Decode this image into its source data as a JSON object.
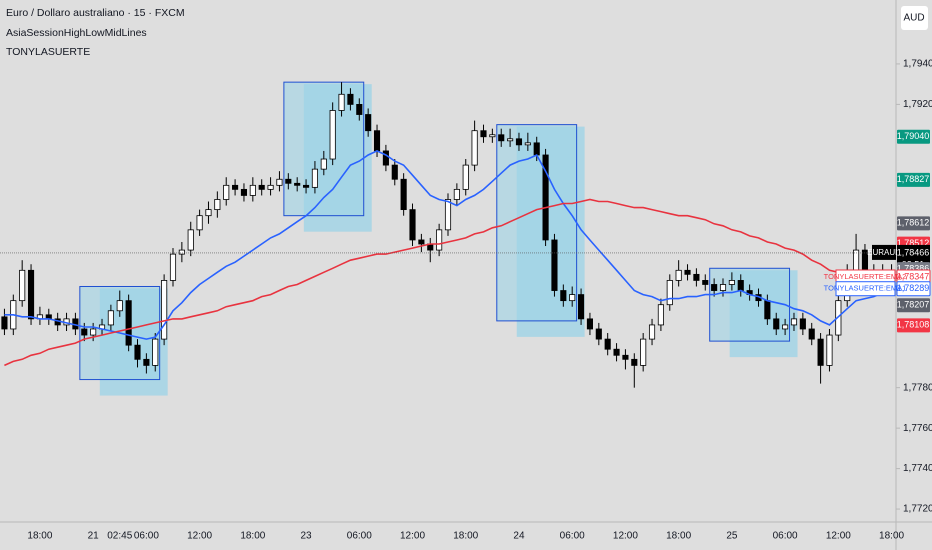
{
  "chart_data": {
    "type": "candlestick",
    "title": "Euro / Dollaro australiano · 15 · FXCM",
    "indicators": [
      "AsiaSessionHighLowMidLines",
      "TONYLASUERTE"
    ],
    "currency": "AUD",
    "up_color": "#ffffff",
    "down_color": "#000000",
    "wick_color": "#000000",
    "grid": false,
    "ylim": [
      1.77136,
      1.79716
    ],
    "yticks": [
      {
        "value": 1.794,
        "label": "1,79400"
      },
      {
        "value": 1.792,
        "label": "1,79200"
      },
      {
        "value": 1.778,
        "label": "1,77800"
      },
      {
        "value": 1.776,
        "label": "1,77600"
      },
      {
        "value": 1.774,
        "label": "1,77400"
      },
      {
        "value": 1.772,
        "label": "1,77200"
      }
    ],
    "categories": [
      null,
      null,
      null,
      null,
      "18:00",
      null,
      null,
      null,
      null,
      null,
      "21",
      null,
      null,
      "02:45",
      null,
      null,
      "06:00",
      null,
      null,
      null,
      null,
      null,
      "12:00",
      null,
      null,
      null,
      null,
      null,
      "18:00",
      null,
      null,
      null,
      null,
      null,
      "23",
      null,
      null,
      null,
      null,
      null,
      "06:00",
      null,
      null,
      null,
      null,
      null,
      "12:00",
      null,
      null,
      null,
      null,
      null,
      "18:00",
      null,
      null,
      null,
      null,
      null,
      "24",
      null,
      null,
      null,
      null,
      null,
      "06:00",
      null,
      null,
      null,
      null,
      null,
      "12:00",
      null,
      null,
      null,
      null,
      null,
      "18:00",
      null,
      null,
      null,
      null,
      null,
      "25",
      null,
      null,
      null,
      null,
      null,
      "06:00",
      null,
      null,
      null,
      null,
      null,
      "12:00",
      null,
      null,
      null,
      null,
      null,
      "18:00"
    ],
    "ohlc": [
      [
        1.7815,
        1.7819,
        1.7806,
        1.7809
      ],
      [
        1.7809,
        1.7826,
        1.7806,
        1.7823
      ],
      [
        1.7823,
        1.7843,
        1.782,
        1.7838
      ],
      [
        1.7838,
        1.7841,
        1.7811,
        1.7814
      ],
      [
        1.7814,
        1.782,
        1.7811,
        1.7816
      ],
      [
        1.7816,
        1.7819,
        1.7811,
        1.7814
      ],
      [
        1.7814,
        1.7817,
        1.7808,
        1.7811
      ],
      [
        1.7811,
        1.7817,
        1.7808,
        1.7814
      ],
      [
        1.7814,
        1.7817,
        1.7806,
        1.7809
      ],
      [
        1.7809,
        1.7812,
        1.7803,
        1.7806
      ],
      [
        1.7806,
        1.7812,
        1.7803,
        1.7809
      ],
      [
        1.7809,
        1.7814,
        1.7806,
        1.7811
      ],
      [
        1.7811,
        1.7821,
        1.7808,
        1.7818
      ],
      [
        1.7818,
        1.7828,
        1.7815,
        1.7823
      ],
      [
        1.7823,
        1.7826,
        1.7798,
        1.7801
      ],
      [
        1.7801,
        1.7804,
        1.779,
        1.7794
      ],
      [
        1.7794,
        1.7797,
        1.7787,
        1.7791
      ],
      [
        1.7791,
        1.7807,
        1.7788,
        1.7804
      ],
      [
        1.7804,
        1.7836,
        1.7801,
        1.7833
      ],
      [
        1.7833,
        1.7849,
        1.783,
        1.7846
      ],
      [
        1.7846,
        1.7852,
        1.7842,
        1.7848
      ],
      [
        1.7848,
        1.7862,
        1.7845,
        1.7858
      ],
      [
        1.7858,
        1.7868,
        1.7855,
        1.7865
      ],
      [
        1.7865,
        1.7872,
        1.7861,
        1.7868
      ],
      [
        1.7868,
        1.7877,
        1.7864,
        1.7873
      ],
      [
        1.7873,
        1.7884,
        1.787,
        1.788
      ],
      [
        1.788,
        1.7883,
        1.7875,
        1.7878
      ],
      [
        1.7878,
        1.7881,
        1.7872,
        1.7875
      ],
      [
        1.7875,
        1.7884,
        1.7872,
        1.788
      ],
      [
        1.788,
        1.7883,
        1.7875,
        1.7878
      ],
      [
        1.7878,
        1.7884,
        1.7875,
        1.788
      ],
      [
        1.788,
        1.7887,
        1.7877,
        1.7883
      ],
      [
        1.7883,
        1.7886,
        1.7878,
        1.7881
      ],
      [
        1.7881,
        1.7884,
        1.7877,
        1.788
      ],
      [
        1.788,
        1.7883,
        1.7876,
        1.7879
      ],
      [
        1.7879,
        1.7892,
        1.7876,
        1.7888
      ],
      [
        1.7888,
        1.7897,
        1.7885,
        1.7893
      ],
      [
        1.7893,
        1.7921,
        1.789,
        1.7917
      ],
      [
        1.7917,
        1.7931,
        1.7914,
        1.7925
      ],
      [
        1.7925,
        1.7928,
        1.7917,
        1.792
      ],
      [
        1.792,
        1.7923,
        1.7912,
        1.7915
      ],
      [
        1.7915,
        1.7918,
        1.7904,
        1.7907
      ],
      [
        1.7907,
        1.791,
        1.7894,
        1.7897
      ],
      [
        1.7897,
        1.79,
        1.7887,
        1.789
      ],
      [
        1.789,
        1.7893,
        1.788,
        1.7883
      ],
      [
        1.7883,
        1.7886,
        1.7865,
        1.7868
      ],
      [
        1.7868,
        1.7871,
        1.785,
        1.7853
      ],
      [
        1.7853,
        1.7856,
        1.7847,
        1.7851
      ],
      [
        1.7851,
        1.7854,
        1.7842,
        1.7848
      ],
      [
        1.7848,
        1.7861,
        1.7845,
        1.7858
      ],
      [
        1.7858,
        1.7876,
        1.7855,
        1.7873
      ],
      [
        1.7873,
        1.7881,
        1.787,
        1.7878
      ],
      [
        1.7878,
        1.7893,
        1.7875,
        1.789
      ],
      [
        1.789,
        1.7912,
        1.7887,
        1.7907
      ],
      [
        1.7907,
        1.791,
        1.7901,
        1.7904
      ],
      [
        1.7904,
        1.7908,
        1.7901,
        1.7905
      ],
      [
        1.7905,
        1.7908,
        1.7899,
        1.7902
      ],
      [
        1.7902,
        1.7908,
        1.7899,
        1.7903
      ],
      [
        1.7903,
        1.7906,
        1.7897,
        1.79
      ],
      [
        1.79,
        1.7906,
        1.7897,
        1.7901
      ],
      [
        1.7901,
        1.7904,
        1.7892,
        1.7895
      ],
      [
        1.7895,
        1.7898,
        1.785,
        1.7853
      ],
      [
        1.7853,
        1.7856,
        1.7825,
        1.7828
      ],
      [
        1.7828,
        1.7831,
        1.782,
        1.7823
      ],
      [
        1.7823,
        1.783,
        1.782,
        1.7826
      ],
      [
        1.7826,
        1.7829,
        1.7811,
        1.7814
      ],
      [
        1.7814,
        1.7817,
        1.7806,
        1.7809
      ],
      [
        1.7809,
        1.7812,
        1.7801,
        1.7804
      ],
      [
        1.7804,
        1.7807,
        1.7796,
        1.7799
      ],
      [
        1.7799,
        1.7802,
        1.7793,
        1.7796
      ],
      [
        1.7796,
        1.7799,
        1.7789,
        1.7794
      ],
      [
        1.7794,
        1.7797,
        1.778,
        1.7791
      ],
      [
        1.7791,
        1.7807,
        1.7788,
        1.7804
      ],
      [
        1.7804,
        1.7814,
        1.7801,
        1.7811
      ],
      [
        1.7811,
        1.7824,
        1.7808,
        1.7821
      ],
      [
        1.7821,
        1.7836,
        1.7818,
        1.7833
      ],
      [
        1.7833,
        1.7843,
        1.783,
        1.7838
      ],
      [
        1.7838,
        1.7841,
        1.7833,
        1.7836
      ],
      [
        1.7836,
        1.7839,
        1.783,
        1.7833
      ],
      [
        1.7833,
        1.7836,
        1.7828,
        1.7831
      ],
      [
        1.7831,
        1.7834,
        1.7825,
        1.7828
      ],
      [
        1.7828,
        1.7834,
        1.7825,
        1.7831
      ],
      [
        1.7831,
        1.7837,
        1.7828,
        1.7833
      ],
      [
        1.7833,
        1.7836,
        1.7825,
        1.7828
      ],
      [
        1.7828,
        1.7831,
        1.7823,
        1.7826
      ],
      [
        1.7826,
        1.7829,
        1.782,
        1.7823
      ],
      [
        1.7823,
        1.7826,
        1.7811,
        1.7814
      ],
      [
        1.7814,
        1.7817,
        1.7806,
        1.7809
      ],
      [
        1.7809,
        1.7814,
        1.7806,
        1.7811
      ],
      [
        1.7811,
        1.7817,
        1.7808,
        1.7814
      ],
      [
        1.7814,
        1.7817,
        1.7806,
        1.7809
      ],
      [
        1.7809,
        1.7812,
        1.7801,
        1.7804
      ],
      [
        1.7804,
        1.7807,
        1.7782,
        1.7791
      ],
      [
        1.7791,
        1.7809,
        1.7788,
        1.7806
      ],
      [
        1.7806,
        1.7826,
        1.7803,
        1.7823
      ],
      [
        1.7823,
        1.7841,
        1.782,
        1.7838
      ],
      [
        1.7838,
        1.7856,
        1.7835,
        1.7848
      ],
      [
        1.7848,
        1.7851,
        1.7835,
        1.7838
      ],
      [
        1.7838,
        1.7841,
        1.7833,
        1.7836
      ],
      [
        1.7836,
        1.7841,
        1.7833,
        1.7838
      ],
      [
        1.7838,
        1.7841,
        1.7833,
        1.7836
      ]
    ],
    "series": [
      {
        "name": "TONYLASUERTE:EMA1",
        "color": "#2962ff",
        "values": [
          1.7816,
          1.7816,
          1.7815,
          1.7815,
          1.7814,
          1.7814,
          1.7813,
          1.7812,
          1.7811,
          1.781,
          1.781,
          1.7809,
          1.7808,
          1.7807,
          1.7806,
          1.7805,
          1.7804,
          1.7805,
          1.7811,
          1.7818,
          1.7822,
          1.7827,
          1.7831,
          1.7834,
          1.7837,
          1.784,
          1.7842,
          1.7845,
          1.7848,
          1.7851,
          1.7854,
          1.7856,
          1.7859,
          1.7862,
          1.7865,
          1.7869,
          1.7874,
          1.7878,
          1.7884,
          1.789,
          1.7892,
          1.7895,
          1.7897,
          1.7895,
          1.7892,
          1.789,
          1.7885,
          1.788,
          1.7875,
          1.7873,
          1.7872,
          1.787,
          1.7873,
          1.7875,
          1.7878,
          1.7882,
          1.7886,
          1.789,
          1.7892,
          1.7893,
          1.7895,
          1.7887,
          1.7878,
          1.7871,
          1.7865,
          1.7858,
          1.7853,
          1.7848,
          1.7843,
          1.7838,
          1.7833,
          1.7828,
          1.7826,
          1.7825,
          1.7823,
          1.7824,
          1.7824,
          1.7825,
          1.7825,
          1.7826,
          1.7826,
          1.7827,
          1.7827,
          1.7828,
          1.7826,
          1.7825,
          1.7823,
          1.7822,
          1.7821,
          1.7819,
          1.7818,
          1.7816,
          1.7813,
          1.7811,
          1.7815,
          1.7819,
          1.7823,
          1.7824,
          1.7825,
          1.7827,
          1.7828
        ]
      },
      {
        "name": "TONYLASUERTE:EMA2",
        "color": "#e8333f",
        "values": [
          1.7791,
          1.7793,
          1.7794,
          1.7796,
          1.7797,
          1.7799,
          1.78,
          1.7801,
          1.7802,
          1.7804,
          1.7805,
          1.7806,
          1.7807,
          1.7808,
          1.7809,
          1.781,
          1.7811,
          1.7812,
          1.7813,
          1.7814,
          1.7814,
          1.7815,
          1.7816,
          1.7817,
          1.7818,
          1.782,
          1.7821,
          1.7822,
          1.7823,
          1.7825,
          1.7826,
          1.7828,
          1.783,
          1.7831,
          1.7833,
          1.7835,
          1.7837,
          1.7839,
          1.7841,
          1.7843,
          1.7844,
          1.7845,
          1.7846,
          1.7846,
          1.7847,
          1.7848,
          1.7849,
          1.785,
          1.7851,
          1.7851,
          1.7852,
          1.7853,
          1.7854,
          1.7856,
          1.7857,
          1.7859,
          1.786,
          1.7862,
          1.7864,
          1.7866,
          1.7868,
          1.7869,
          1.787,
          1.7871,
          1.7871,
          1.7872,
          1.7873,
          1.7872,
          1.7872,
          1.7871,
          1.787,
          1.7869,
          1.7869,
          1.7868,
          1.7867,
          1.7866,
          1.7865,
          1.7865,
          1.7864,
          1.7863,
          1.7861,
          1.786,
          1.7858,
          1.7857,
          1.7855,
          1.7854,
          1.7852,
          1.7851,
          1.7849,
          1.7848,
          1.7846,
          1.7843,
          1.7841,
          1.7838,
          1.7837,
          1.7837,
          1.7836,
          1.7836,
          1.7836,
          1.7836,
          1.7836
        ]
      }
    ],
    "box_color": "#9fd3e6",
    "box_border": "#1f4fd1",
    "boxes": [
      {
        "from": 9,
        "to": 17,
        "high": 1.783,
        "low": 1.7784
      },
      {
        "from": 32,
        "to": 40,
        "high": 1.7931,
        "low": 1.7865
      },
      {
        "from": 56,
        "to": 64,
        "high": 1.791,
        "low": 1.7813
      },
      {
        "from": 80,
        "to": 88,
        "high": 1.7839,
        "low": 1.7803
      }
    ],
    "price_labels": [
      {
        "value": 1.7904,
        "label": "1,79040",
        "color": "#089981"
      },
      {
        "value": 1.78827,
        "label": "1,78827",
        "color": "#089981"
      },
      {
        "value": 1.78612,
        "label": "1,78612",
        "color": "#5d606b"
      },
      {
        "value": 1.78512,
        "label": "1,78512",
        "color": "#f23645"
      },
      {
        "value": 1.78466,
        "label": "1,78466",
        "color": "#000000",
        "name": "EURAUD",
        "countdown": "02:51"
      },
      {
        "value": 1.78386,
        "label": "1,78386",
        "color": "#787b86"
      },
      {
        "value": 1.78347,
        "label": "1,78347",
        "color": "#f23645",
        "outline": true,
        "name": "TONYLASUERTE:EMA2"
      },
      {
        "value": 1.78289,
        "label": "1,78289",
        "color": "#2962ff",
        "outline": true,
        "name": "TONYLASUERTE:EMA1"
      },
      {
        "value": 1.78207,
        "label": "1,78207",
        "color": "#5d606b"
      },
      {
        "value": 1.78108,
        "label": "1,78108",
        "color": "#f23645"
      }
    ]
  }
}
